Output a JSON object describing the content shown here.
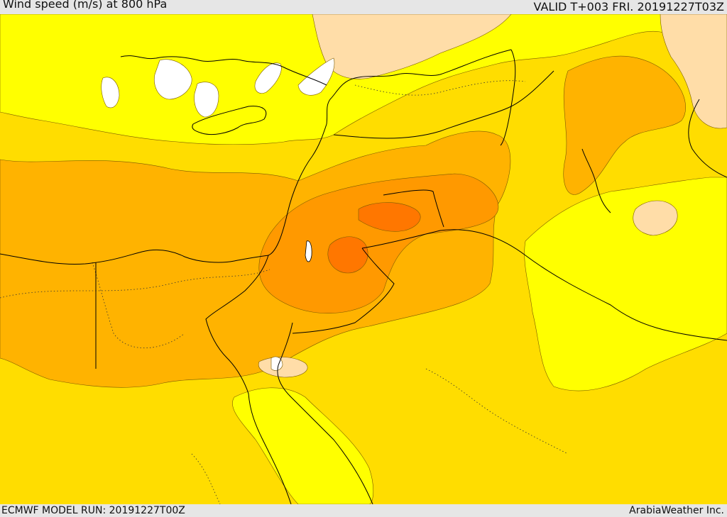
{
  "header": {
    "title": "Wind speed (m/s) at 800 hPa",
    "valid": "VALID T+003 FRI. 20191227T03Z"
  },
  "footer": {
    "model_run": "ECMWF MODEL RUN: 20191227T00Z",
    "credit": "ArabiaWeather Inc."
  },
  "colors": {
    "calm": "#ffffff",
    "pale": "#ffdda8",
    "light": "#ffff00",
    "moderate": "#ffdd00",
    "strong": "#ffb300",
    "stronger": "#ff9900",
    "strongest": "#ff7700",
    "border": "#000000"
  }
}
